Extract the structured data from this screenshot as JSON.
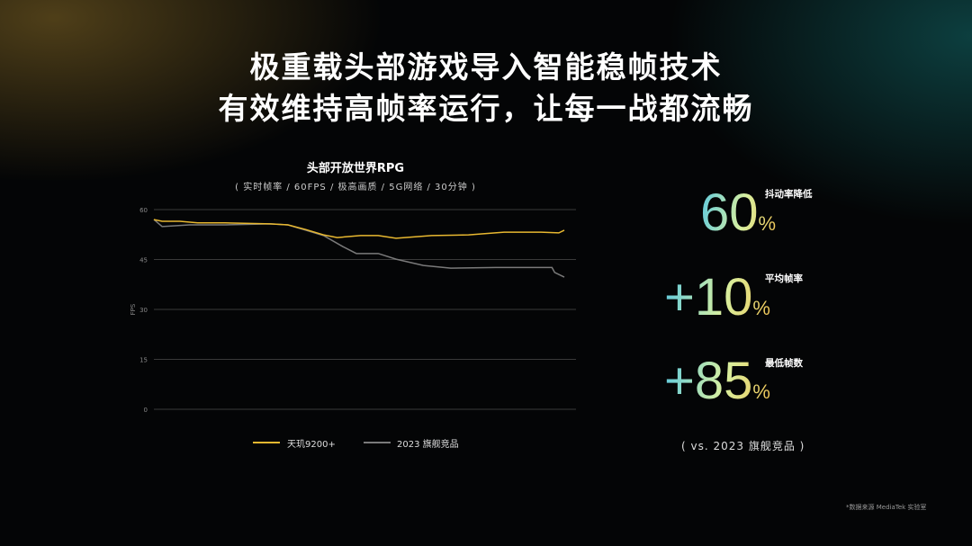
{
  "headline": [
    "极重载头部游戏导入智能稳帧技术",
    "有效维持高帧率运行，让每一战都流畅"
  ],
  "chart_data": {
    "type": "line",
    "title": "头部开放世界RPG",
    "subtitle": "( 实时帧率 / 60FPS / 极高画质 / 5G网络 / 30分钟 )",
    "ylabel": "FPS",
    "ylim": [
      0,
      60
    ],
    "yticks": [
      0,
      15,
      30,
      45,
      60
    ],
    "grid": true,
    "legend": "bottom",
    "xlim": [
      0,
      30
    ],
    "series": [
      {
        "name": "天玑9200+",
        "color": "#e8b830",
        "x": [
          0,
          0.6,
          1.9,
          3.2,
          5.2,
          8.5,
          9.8,
          11.1,
          12.4,
          13.4,
          15.1,
          16.4,
          17.7,
          20.3,
          23,
          25.6,
          28.3,
          29.6,
          30
        ],
        "y": [
          57,
          56.5,
          56.5,
          56,
          56,
          55.7,
          55.4,
          54,
          52.4,
          51.6,
          52.2,
          52.2,
          51.4,
          52.2,
          52.4,
          53.2,
          53.2,
          53,
          53.8
        ]
      },
      {
        "name": "2023 旗舰竞品",
        "color": "#7a7a7a",
        "x": [
          0,
          0.6,
          2.6,
          5.2,
          8.5,
          9.8,
          11.1,
          12.4,
          13.8,
          14.8,
          16.4,
          17.7,
          19.7,
          21.7,
          25,
          28.3,
          29.1,
          29.3,
          30
        ],
        "y": [
          57,
          54.9,
          55.4,
          55.4,
          55.7,
          55.4,
          53.8,
          52.2,
          48.9,
          46.8,
          46.8,
          45.1,
          43.2,
          42.4,
          42.6,
          42.6,
          42.6,
          41.1,
          39.7
        ]
      }
    ]
  },
  "stats": [
    {
      "value": "60",
      "unit": "%",
      "label": "抖动率降低"
    },
    {
      "value": "+10",
      "unit": "%",
      "label": "平均帧率"
    },
    {
      "value": "+85",
      "unit": "%",
      "label": "最低帧数"
    }
  ],
  "comparison_note": "( vs. 2023 旗舰竞品 )",
  "footnote": "*数据来源 MediaTek 实验室"
}
